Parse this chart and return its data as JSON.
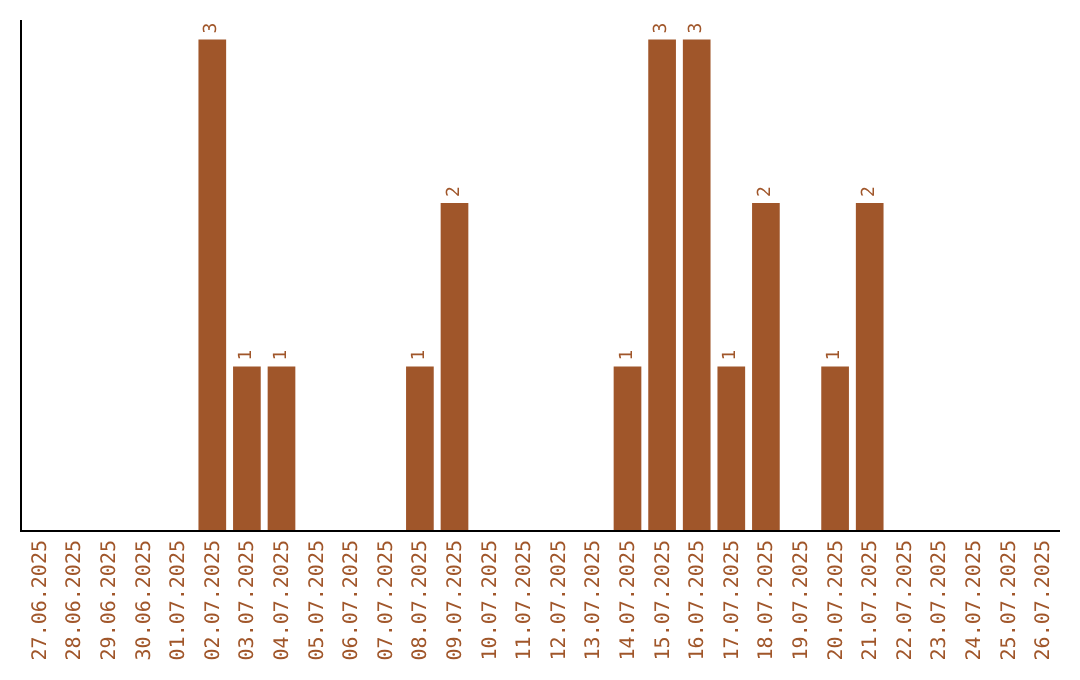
{
  "chart_data": {
    "type": "bar",
    "categories": [
      "27.06.2025",
      "28.06.2025",
      "29.06.2025",
      "30.06.2025",
      "01.07.2025",
      "02.07.2025",
      "03.07.2025",
      "04.07.2025",
      "05.07.2025",
      "06.07.2025",
      "07.07.2025",
      "08.07.2025",
      "09.07.2025",
      "10.07.2025",
      "11.07.2025",
      "12.07.2025",
      "13.07.2025",
      "14.07.2025",
      "15.07.2025",
      "16.07.2025",
      "17.07.2025",
      "18.07.2025",
      "19.07.2025",
      "20.07.2025",
      "21.07.2025",
      "22.07.2025",
      "23.07.2025",
      "24.07.2025",
      "25.07.2025",
      "26.07.2025"
    ],
    "values": [
      0,
      0,
      0,
      0,
      0,
      3,
      1,
      1,
      0,
      0,
      0,
      1,
      2,
      0,
      0,
      0,
      0,
      1,
      3,
      3,
      1,
      2,
      0,
      1,
      2,
      0,
      0,
      0,
      0,
      0
    ],
    "value_labels": [
      null,
      null,
      null,
      null,
      null,
      "3",
      "1",
      "1",
      null,
      null,
      null,
      "1",
      "2",
      null,
      null,
      null,
      null,
      "1",
      "3",
      "3",
      "1",
      "2",
      null,
      "1",
      "2",
      null,
      null,
      null,
      null,
      null
    ],
    "color": "#a0562a"
  }
}
